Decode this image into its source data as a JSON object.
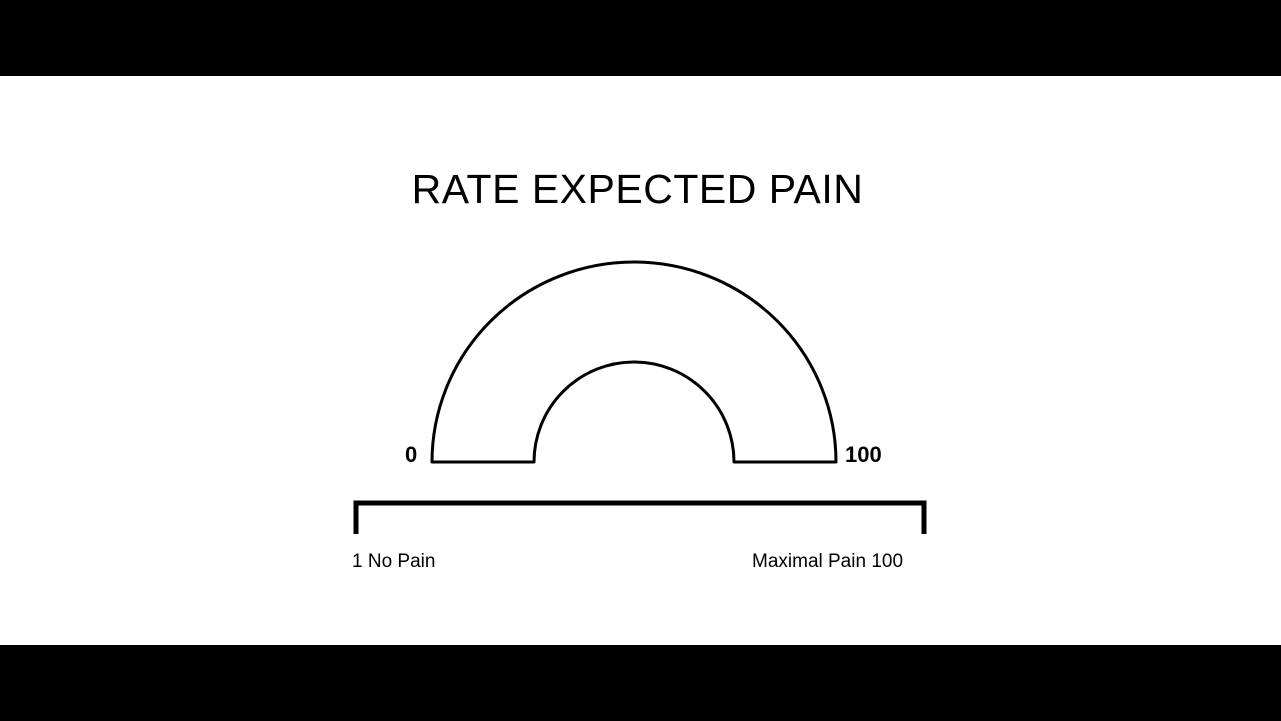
{
  "slide": {
    "title": "RATE EXPECTED PAIN"
  },
  "gauge": {
    "min_label": "0",
    "max_label": "100",
    "stroke_color": "#000000"
  },
  "scale": {
    "left_label": "1 No Pain",
    "right_label": "Maximal Pain 100"
  },
  "colors": {
    "background": "#ffffff",
    "letterbox": "#000000"
  }
}
